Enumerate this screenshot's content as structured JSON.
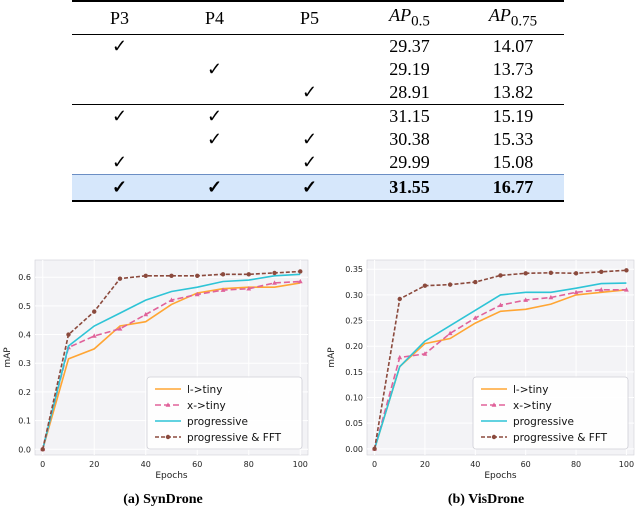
{
  "table": {
    "headers": [
      "P3",
      "P4",
      "P5",
      "AP",
      "AP"
    ],
    "header_subscripts": [
      "0.5",
      "0.75"
    ],
    "check_symbol": "✓",
    "rows": [
      {
        "p3": "✓",
        "p4": "",
        "p5": "",
        "ap50": "29.37",
        "ap75": "14.07"
      },
      {
        "p3": "",
        "p4": "✓",
        "p5": "",
        "ap50": "29.19",
        "ap75": "13.73"
      },
      {
        "p3": "",
        "p4": "",
        "p5": "✓",
        "ap50": "28.91",
        "ap75": "13.82"
      },
      {
        "p3": "✓",
        "p4": "✓",
        "p5": "",
        "ap50": "31.15",
        "ap75": "15.19"
      },
      {
        "p3": "",
        "p4": "✓",
        "p5": "✓",
        "ap50": "30.38",
        "ap75": "15.33"
      },
      {
        "p3": "✓",
        "p4": "",
        "p5": "✓",
        "ap50": "29.99",
        "ap75": "15.08"
      },
      {
        "p3": "✓",
        "p4": "✓",
        "p5": "✓",
        "ap50": "31.55",
        "ap75": "16.77"
      }
    ],
    "highlight_color": "#d6e7fb"
  },
  "series_colors": [
    "#ffa533",
    "#e0629a",
    "#2ec4d6",
    "#8b4a3d"
  ],
  "chart_data": [
    {
      "type": "line",
      "caption": "(a) SynDrone",
      "xlabel": "Epochs",
      "ylabel": "mAP",
      "xlim": [
        -3,
        103
      ],
      "ylim": [
        -0.02,
        0.66
      ],
      "xticks": [
        0,
        20,
        40,
        60,
        80,
        100
      ],
      "yticks": [
        0.0,
        0.1,
        0.2,
        0.3,
        0.4,
        0.5,
        0.6
      ],
      "ytick_labels": [
        "0.0",
        "0.1",
        "0.2",
        "0.3",
        "0.4",
        "0.5",
        "0.6"
      ],
      "grid": true,
      "legend": "bottom-right",
      "x": [
        0,
        10,
        20,
        30,
        40,
        50,
        60,
        70,
        80,
        90,
        100
      ],
      "series": [
        {
          "name": "l->tiny",
          "values": [
            0.0,
            0.315,
            0.35,
            0.43,
            0.445,
            0.505,
            0.545,
            0.56,
            0.565,
            0.565,
            0.58
          ]
        },
        {
          "name": "x->tiny",
          "values": [
            0.0,
            0.355,
            0.395,
            0.42,
            0.47,
            0.52,
            0.54,
            0.555,
            0.56,
            0.58,
            0.585
          ]
        },
        {
          "name": "progressive",
          "values": [
            0.0,
            0.36,
            0.43,
            0.475,
            0.52,
            0.55,
            0.565,
            0.585,
            0.59,
            0.605,
            0.61
          ]
        },
        {
          "name": "progressive & FFT",
          "values": [
            0.0,
            0.4,
            0.48,
            0.595,
            0.605,
            0.605,
            0.605,
            0.61,
            0.61,
            0.615,
            0.62
          ]
        }
      ]
    },
    {
      "type": "line",
      "caption": "(b) VisDrone",
      "xlabel": "Epochs",
      "ylabel": "mAP",
      "xlim": [
        -3,
        103
      ],
      "ylim": [
        -0.012,
        0.368
      ],
      "xticks": [
        0,
        20,
        40,
        60,
        80,
        100
      ],
      "yticks": [
        0.0,
        0.05,
        0.1,
        0.15,
        0.2,
        0.25,
        0.3,
        0.35
      ],
      "ytick_labels": [
        "0.00",
        "0.05",
        "0.10",
        "0.15",
        "0.20",
        "0.25",
        "0.30",
        "0.35"
      ],
      "grid": true,
      "legend": "bottom-right",
      "x": [
        0,
        10,
        20,
        30,
        40,
        50,
        60,
        70,
        80,
        90,
        100
      ],
      "series": [
        {
          "name": "l->tiny",
          "values": [
            0.0,
            0.16,
            0.205,
            0.215,
            0.245,
            0.268,
            0.272,
            0.282,
            0.3,
            0.305,
            0.31
          ]
        },
        {
          "name": "x->tiny",
          "values": [
            0.0,
            0.178,
            0.185,
            0.225,
            0.255,
            0.28,
            0.29,
            0.295,
            0.305,
            0.31,
            0.31
          ]
        },
        {
          "name": "progressive",
          "values": [
            0.0,
            0.16,
            0.21,
            0.24,
            0.27,
            0.3,
            0.305,
            0.305,
            0.313,
            0.322,
            0.323
          ]
        },
        {
          "name": "progressive & FFT",
          "values": [
            0.0,
            0.292,
            0.318,
            0.32,
            0.325,
            0.338,
            0.342,
            0.343,
            0.342,
            0.345,
            0.348
          ]
        }
      ]
    }
  ]
}
